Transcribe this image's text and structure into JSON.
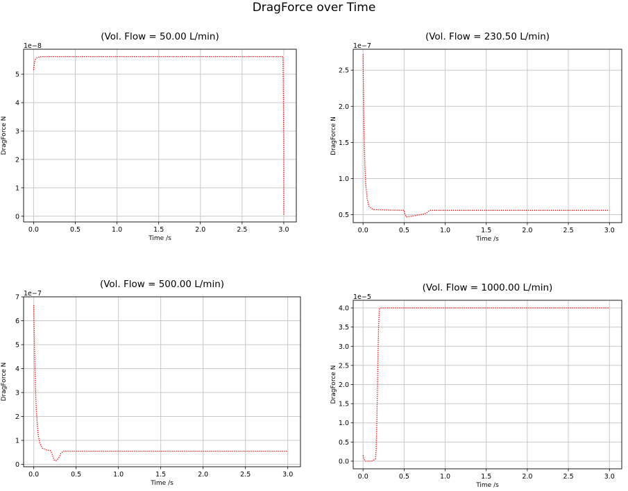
{
  "figure": {
    "title": "DragForce over Time"
  },
  "chart_data": [
    {
      "type": "line",
      "title": "(Vol. Flow = 50.00 L/min)",
      "xlabel": "Time /s",
      "ylabel": "DragForce N",
      "offset_text": "1e−8",
      "xlim": [
        -0.12,
        3.15
      ],
      "ylim": [
        -0.2,
        5.88
      ],
      "xticks": [
        0.0,
        0.5,
        1.0,
        1.5,
        2.0,
        2.5,
        3.0
      ],
      "xtick_labels": [
        "0.0",
        "0.5",
        "1.0",
        "1.5",
        "2.0",
        "2.5",
        "3.0"
      ],
      "yticks": [
        0,
        1,
        2,
        3,
        4,
        5
      ],
      "ytick_labels": [
        "0",
        "1",
        "2",
        "3",
        "4",
        "5"
      ],
      "grid": true,
      "line_color": "#ff0000",
      "line_style": "dotted",
      "series": [
        {
          "x": [
            0.0,
            0.01,
            0.02,
            0.04,
            0.06,
            0.1,
            0.15,
            0.3,
            1.0,
            2.0,
            2.99,
            3.0,
            3.0
          ],
          "y": [
            5.15,
            5.4,
            5.52,
            5.58,
            5.6,
            5.62,
            5.62,
            5.62,
            5.62,
            5.62,
            5.62,
            2.5,
            0.05
          ]
        }
      ]
    },
    {
      "type": "line",
      "title": "(Vol. Flow = 230.50 L/min)",
      "xlabel": "Time /s",
      "ylabel": "DragForce N",
      "offset_text": "1e−7",
      "xlim": [
        -0.12,
        3.15
      ],
      "ylim": [
        0.39,
        2.79
      ],
      "xticks": [
        0.0,
        0.5,
        1.0,
        1.5,
        2.0,
        2.5,
        3.0
      ],
      "xtick_labels": [
        "0.0",
        "0.5",
        "1.0",
        "1.5",
        "2.0",
        "2.5",
        "3.0"
      ],
      "yticks": [
        0.5,
        1.0,
        1.5,
        2.0,
        2.5
      ],
      "ytick_labels": [
        "0.5",
        "1.0",
        "1.5",
        "2.0",
        "2.5"
      ],
      "grid": true,
      "line_color": "#ff0000",
      "line_style": "dotted",
      "series": [
        {
          "x": [
            0.0,
            0.005,
            0.01,
            0.02,
            0.03,
            0.05,
            0.07,
            0.1,
            0.13,
            0.2,
            0.3,
            0.4,
            0.5,
            0.51,
            0.53,
            0.56,
            0.6,
            0.65,
            0.7,
            0.75,
            0.78,
            0.8,
            0.82,
            0.9,
            1.5,
            2.0,
            2.5,
            3.0
          ],
          "y": [
            2.72,
            2.2,
            1.75,
            1.25,
            0.95,
            0.72,
            0.62,
            0.585,
            0.57,
            0.568,
            0.565,
            0.562,
            0.56,
            0.5,
            0.47,
            0.475,
            0.48,
            0.49,
            0.5,
            0.51,
            0.53,
            0.55,
            0.56,
            0.56,
            0.56,
            0.56,
            0.56,
            0.56
          ]
        }
      ]
    },
    {
      "type": "line",
      "title": "(Vol. Flow = 500.00 L/min)",
      "xlabel": "Time /s",
      "ylabel": "DragForce N",
      "offset_text": "1e−7",
      "xlim": [
        -0.12,
        3.15
      ],
      "ylim": [
        -0.1,
        7.0
      ],
      "xticks": [
        0.0,
        0.5,
        1.0,
        1.5,
        2.0,
        2.5,
        3.0
      ],
      "xtick_labels": [
        "0.0",
        "0.5",
        "1.0",
        "1.5",
        "2.0",
        "2.5",
        "3.0"
      ],
      "yticks": [
        0,
        1,
        2,
        3,
        4,
        5,
        6,
        7
      ],
      "ytick_labels": [
        "0",
        "1",
        "2",
        "3",
        "4",
        "5",
        "6",
        "7"
      ],
      "grid": true,
      "line_color": "#ff0000",
      "line_style": "dotted",
      "series": [
        {
          "x": [
            0.0,
            0.005,
            0.01,
            0.02,
            0.03,
            0.05,
            0.07,
            0.1,
            0.15,
            0.2,
            0.22,
            0.24,
            0.26,
            0.28,
            0.3,
            0.32,
            0.35,
            0.4,
            1.0,
            2.0,
            3.0
          ],
          "y": [
            6.65,
            5.6,
            4.6,
            3.2,
            2.3,
            1.3,
            0.9,
            0.68,
            0.6,
            0.57,
            0.4,
            0.18,
            0.15,
            0.2,
            0.3,
            0.45,
            0.55,
            0.55,
            0.55,
            0.55,
            0.55
          ]
        }
      ]
    },
    {
      "type": "line",
      "title": "(Vol. Flow = 1000.00 L/min)",
      "xlabel": "Time /s",
      "ylabel": "DragForce N",
      "offset_text": "1e−5",
      "xlim": [
        -0.12,
        3.15
      ],
      "ylim": [
        -0.2,
        4.2
      ],
      "xticks": [
        0.0,
        0.5,
        1.0,
        1.5,
        2.0,
        2.5,
        3.0
      ],
      "xtick_labels": [
        "0.0",
        "0.5",
        "1.0",
        "1.5",
        "2.0",
        "2.5",
        "3.0"
      ],
      "yticks": [
        0.0,
        0.5,
        1.0,
        1.5,
        2.0,
        2.5,
        3.0,
        3.5,
        4.0
      ],
      "ytick_labels": [
        "0.0",
        "0.5",
        "1.0",
        "1.5",
        "2.0",
        "2.5",
        "3.0",
        "3.5",
        "4.0"
      ],
      "grid": true,
      "line_color": "#ff0000",
      "line_style": "dotted",
      "series": [
        {
          "x": [
            0.0,
            0.01,
            0.03,
            0.06,
            0.1,
            0.15,
            0.16,
            0.17,
            0.18,
            0.19,
            0.2,
            0.22,
            0.5,
            1.0,
            2.0,
            3.0
          ],
          "y": [
            0.15,
            0.05,
            0.0,
            0.0,
            0.0,
            0.05,
            0.3,
            1.2,
            2.6,
            3.6,
            3.98,
            4.0,
            4.0,
            4.0,
            4.0,
            4.0
          ]
        }
      ]
    }
  ]
}
